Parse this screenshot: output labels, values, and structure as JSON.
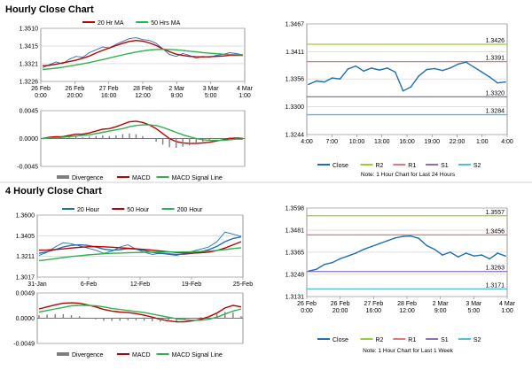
{
  "colors": {
    "close": "#1f6fb2",
    "ma_a": "#c00000",
    "ma_b": "#2db34a",
    "ma_c": "#2db34a",
    "hour20": "#1f6fb2",
    "hour50": "#c00000",
    "hour200": "#2db34a",
    "divergence": "#7f7f7f",
    "macd": "#c00000",
    "signal": "#2db34a",
    "r2": "#9acd32",
    "r1": "#e07a7a",
    "s1": "#8e6fb7",
    "s2": "#4fc0d8",
    "grid": "#cccccc",
    "axis": "#808080"
  },
  "sections": {
    "hourly_title": "Hourly Close Chart",
    "four_hourly_title": "4 Hourly Close Chart"
  },
  "chart_data": [
    {
      "id": "hourly-price",
      "type": "line",
      "legend": [
        "20 Hr MA",
        "50 Hrs MA"
      ],
      "ylim": [
        1.3226,
        1.351
      ],
      "yticks": [
        "1.3510",
        "1.3415",
        "1.3321",
        "1.3226"
      ],
      "yticks_val": [
        1.351,
        1.3415,
        1.3321,
        1.3226
      ],
      "xticks": [
        [
          "26 Feb",
          "0:00"
        ],
        [
          "26 Feb",
          "20:00"
        ],
        [
          "27 Feb",
          "16:00"
        ],
        [
          "28 Feb",
          "12:00"
        ],
        [
          "2 Mar",
          "9:00"
        ],
        [
          "3 Mar",
          "5:00"
        ],
        [
          "4 Mar",
          "1:00"
        ]
      ],
      "series": [
        {
          "name": "Close",
          "values": [
            1.33,
            1.3315,
            1.333,
            1.332,
            1.3345,
            1.336,
            1.3355,
            1.338,
            1.3395,
            1.341,
            1.3405,
            1.3425,
            1.344,
            1.3455,
            1.346,
            1.345,
            1.3445,
            1.343,
            1.34,
            1.337,
            1.336,
            1.3375,
            1.3365,
            1.335,
            1.336,
            1.3355,
            1.3365,
            1.337,
            1.338,
            1.3375,
            1.3368
          ]
        },
        {
          "name": "20 Hr MA",
          "values": [
            1.331,
            1.3312,
            1.3318,
            1.3325,
            1.3332,
            1.334,
            1.335,
            1.3362,
            1.3378,
            1.3392,
            1.3405,
            1.3418,
            1.343,
            1.344,
            1.3445,
            1.3442,
            1.3432,
            1.3418,
            1.34,
            1.3385,
            1.3372,
            1.3365,
            1.336,
            1.3358,
            1.3357,
            1.3358,
            1.336,
            1.3362,
            1.3365,
            1.3366,
            1.3365
          ]
        },
        {
          "name": "50 Hrs MA",
          "values": [
            1.329,
            1.3293,
            1.3297,
            1.3302,
            1.3308,
            1.3314,
            1.332,
            1.3327,
            1.3335,
            1.3343,
            1.3351,
            1.336,
            1.3368,
            1.3376,
            1.3383,
            1.3389,
            1.3394,
            1.3397,
            1.3398,
            1.3397,
            1.3395,
            1.3392,
            1.3388,
            1.3384,
            1.338,
            1.3377,
            1.3374,
            1.3372,
            1.337,
            1.3369,
            1.3368
          ]
        }
      ]
    },
    {
      "id": "hourly-macd",
      "type": "line",
      "ylim": [
        -0.0045,
        0.0045
      ],
      "yticks": [
        "0.0045",
        "0.0000",
        "-0.0045"
      ],
      "yticks_val": [
        0.0045,
        0.0,
        -0.0045
      ],
      "legend": [
        "Divergence",
        "MACD",
        "MACD Signal Line"
      ],
      "series": [
        {
          "name": "MACD",
          "values": [
            0.0,
            0.0002,
            0.0003,
            0.0003,
            0.0005,
            0.0007,
            0.0007,
            0.0009,
            0.0012,
            0.0015,
            0.0016,
            0.0019,
            0.0023,
            0.0027,
            0.0028,
            0.0026,
            0.0022,
            0.0016,
            0.0008,
            0.0,
            -0.0005,
            -0.0007,
            -0.0008,
            -0.0008,
            -0.0007,
            -0.0006,
            -0.0004,
            -0.0002,
            0.0,
            0.0001,
            0.0
          ]
        },
        {
          "name": "MACD Signal Line",
          "values": [
            0.0,
            0.0001,
            0.0001,
            0.0002,
            0.0003,
            0.0004,
            0.0005,
            0.0006,
            0.0008,
            0.001,
            0.0012,
            0.0014,
            0.0016,
            0.0019,
            0.0021,
            0.0022,
            0.0022,
            0.0021,
            0.0018,
            0.0014,
            0.001,
            0.0006,
            0.0003,
            0.0,
            -0.0002,
            -0.0003,
            -0.0003,
            -0.0003,
            -0.0002,
            -0.0001,
            -0.0001
          ]
        },
        {
          "name": "Divergence",
          "values": [
            0.0,
            0.0001,
            0.0002,
            0.0001,
            0.0002,
            0.0003,
            0.0002,
            0.0003,
            0.0004,
            0.0005,
            0.0004,
            0.0005,
            0.0007,
            0.0008,
            0.0007,
            0.0004,
            0.0,
            -0.0005,
            -0.001,
            -0.0014,
            -0.0015,
            -0.0013,
            -0.0011,
            -0.0008,
            -0.0005,
            -0.0003,
            -0.0001,
            0.0001,
            0.0002,
            0.0002,
            0.0001
          ]
        }
      ]
    },
    {
      "id": "hourly-right",
      "type": "line",
      "ylim": [
        1.3244,
        1.3467
      ],
      "yticks": [
        "1.3467",
        "1.3411",
        "1.3356",
        "1.3300",
        "1.3244"
      ],
      "yticks_val": [
        1.3467,
        1.3411,
        1.3356,
        1.33,
        1.3244
      ],
      "xticks": [
        "4:00",
        "7:00",
        "10:00",
        "13:00",
        "16:00",
        "19:00",
        "22:00",
        "1:00",
        "4:00"
      ],
      "levels": [
        {
          "name": "R2",
          "value": 1.3426,
          "label": "1.3426"
        },
        {
          "name": "R1",
          "value": 1.3391,
          "label": "1.3391"
        },
        {
          "name": "S1",
          "value": 1.332,
          "label": "1.3320"
        },
        {
          "name": "S2",
          "value": 1.3284,
          "label": "1.3284"
        }
      ],
      "series": [
        {
          "name": "Close",
          "values": [
            1.3345,
            1.3352,
            1.335,
            1.3358,
            1.3356,
            1.3376,
            1.3382,
            1.3372,
            1.3378,
            1.3374,
            1.3378,
            1.337,
            1.3332,
            1.334,
            1.3362,
            1.3375,
            1.3377,
            1.3373,
            1.3378,
            1.3386,
            1.339,
            1.338,
            1.337,
            1.336,
            1.3348,
            1.335
          ]
        }
      ],
      "legend": [
        "Close",
        "R2",
        "R1",
        "S1",
        "S2"
      ],
      "note": "Note: 1 Hour Chart for Last 24 Hours"
    },
    {
      "id": "four-hourly-price",
      "type": "line",
      "legend": [
        "20 Hour",
        "50 Hour",
        "200 Hour"
      ],
      "ylim": [
        1.3017,
        1.36
      ],
      "yticks": [
        "1.3600",
        "1.3405",
        "1.3211",
        "1.3017"
      ],
      "yticks_val": [
        1.36,
        1.3405,
        1.3211,
        1.3017
      ],
      "xticks": [
        "31-Jan",
        "6-Feb",
        "12-Feb",
        "19-Feb",
        "25-Feb"
      ],
      "series": [
        {
          "name": "Close",
          "values": [
            1.322,
            1.325,
            1.33,
            1.334,
            1.333,
            1.331,
            1.329,
            1.327,
            1.324,
            1.326,
            1.33,
            1.332,
            1.328,
            1.325,
            1.323,
            1.324,
            1.323,
            1.322,
            1.324,
            1.326,
            1.328,
            1.33,
            1.335,
            1.344,
            1.342,
            1.34
          ]
        },
        {
          "name": "20 Hour",
          "values": [
            1.324,
            1.3255,
            1.3275,
            1.33,
            1.3315,
            1.332,
            1.3315,
            1.33,
            1.328,
            1.327,
            1.3275,
            1.3285,
            1.328,
            1.3268,
            1.325,
            1.324,
            1.3235,
            1.323,
            1.3232,
            1.324,
            1.3255,
            1.3275,
            1.3305,
            1.335,
            1.338,
            1.3395
          ]
        },
        {
          "name": "50 Hour",
          "values": [
            1.327,
            1.3272,
            1.3276,
            1.3282,
            1.329,
            1.3297,
            1.3302,
            1.3304,
            1.3302,
            1.3298,
            1.3293,
            1.3288,
            1.3283,
            1.3277,
            1.327,
            1.3262,
            1.3255,
            1.3248,
            1.3244,
            1.3243,
            1.3246,
            1.3252,
            1.3266,
            1.329,
            1.332,
            1.335
          ]
        },
        {
          "name": "200 Hour",
          "values": [
            1.317,
            1.318,
            1.319,
            1.32,
            1.321,
            1.3218,
            1.3225,
            1.3231,
            1.3236,
            1.324,
            1.3243,
            1.3246,
            1.3248,
            1.325,
            1.3251,
            1.3252,
            1.3252,
            1.3252,
            1.3253,
            1.3255,
            1.3258,
            1.3262,
            1.3268,
            1.3276,
            1.3285,
            1.3293
          ]
        }
      ]
    },
    {
      "id": "four-hourly-macd",
      "type": "line",
      "ylim": [
        -0.0049,
        0.0049
      ],
      "yticks": [
        "0.0049",
        "0.0000",
        "-0.0049"
      ],
      "yticks_val": [
        0.0049,
        0.0,
        -0.0049
      ],
      "legend": [
        "Divergence",
        "MACD",
        "MACD Signal Line"
      ],
      "series": [
        {
          "name": "MACD",
          "values": [
            0.0018,
            0.0022,
            0.0026,
            0.0029,
            0.003,
            0.0029,
            0.0026,
            0.0022,
            0.0017,
            0.0014,
            0.0012,
            0.0011,
            0.0009,
            0.0006,
            0.0002,
            -0.0002,
            -0.0005,
            -0.0007,
            -0.0007,
            -0.0005,
            -0.0002,
            0.0003,
            0.001,
            0.002,
            0.0025,
            0.0022
          ]
        },
        {
          "name": "MACD Signal Line",
          "values": [
            0.0012,
            0.0015,
            0.0018,
            0.0021,
            0.0024,
            0.0025,
            0.0025,
            0.0024,
            0.0022,
            0.0019,
            0.0017,
            0.0015,
            0.0013,
            0.0011,
            0.0008,
            0.0005,
            0.0002,
            -0.0001,
            -0.0003,
            -0.0004,
            -0.0004,
            -0.0002,
            0.0002,
            0.0008,
            0.0014,
            0.0018
          ]
        },
        {
          "name": "Divergence",
          "values": [
            0.0006,
            0.0007,
            0.0008,
            0.0008,
            0.0006,
            0.0004,
            0.0001,
            -0.0002,
            -0.0005,
            -0.0005,
            -0.0005,
            -0.0004,
            -0.0004,
            -0.0005,
            -0.0006,
            -0.0007,
            -0.0007,
            -0.0006,
            -0.0004,
            -0.0001,
            0.0002,
            0.0005,
            0.0008,
            0.0012,
            0.0011,
            0.0004
          ]
        }
      ]
    },
    {
      "id": "four-hourly-right",
      "type": "line",
      "ylim": [
        1.3131,
        1.3598
      ],
      "yticks": [
        "1.3598",
        "1.3481",
        "1.3365",
        "1.3248",
        "1.3131"
      ],
      "yticks_val": [
        1.3598,
        1.3481,
        1.3365,
        1.3248,
        1.3131
      ],
      "xticks": [
        [
          "26 Feb",
          "0:00"
        ],
        [
          "26 Feb",
          "20:00"
        ],
        [
          "27 Feb",
          "16:00"
        ],
        [
          "28 Feb",
          "12:00"
        ],
        [
          "2 Mar",
          "9:00"
        ],
        [
          "3 Mar",
          "5:00"
        ],
        [
          "4 Mar",
          "1:00"
        ]
      ],
      "levels": [
        {
          "name": "R2",
          "value": 1.3557,
          "label": "1.3557"
        },
        {
          "name": "R1",
          "value": 1.3456,
          "label": "1.3456"
        },
        {
          "name": "S1",
          "value": 1.3263,
          "label": "1.3263"
        },
        {
          "name": "S2",
          "value": 1.3171,
          "label": "1.3171"
        }
      ],
      "series": [
        {
          "name": "Close",
          "values": [
            1.3265,
            1.3275,
            1.33,
            1.331,
            1.333,
            1.3345,
            1.336,
            1.338,
            1.3395,
            1.341,
            1.3425,
            1.344,
            1.3448,
            1.345,
            1.3438,
            1.34,
            1.338,
            1.335,
            1.3365,
            1.334,
            1.336,
            1.3345,
            1.335,
            1.333,
            1.336,
            1.3345
          ]
        }
      ],
      "legend": [
        "Close",
        "R2",
        "R1",
        "S1",
        "S2"
      ],
      "note": "Note: 1 Hour Chart for Last 1 Week"
    }
  ]
}
